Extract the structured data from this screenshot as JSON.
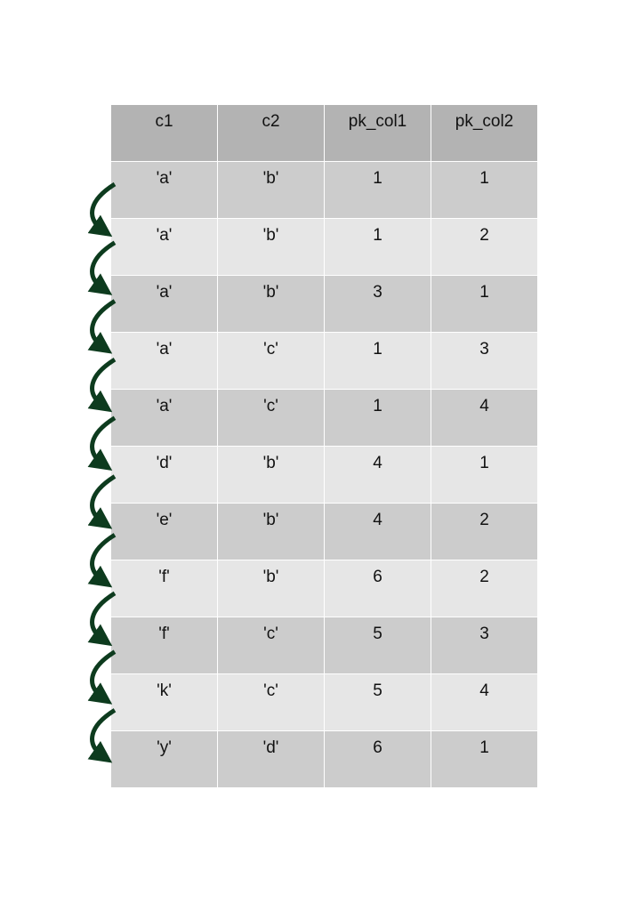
{
  "columns": [
    "c1",
    "c2",
    "pk_col1",
    "pk_col2"
  ],
  "rows": [
    [
      "'a'",
      "'b'",
      "1",
      "1"
    ],
    [
      "'a'",
      "'b'",
      "1",
      "2"
    ],
    [
      "'a'",
      "'b'",
      "3",
      "1"
    ],
    [
      "'a'",
      "'c'",
      "1",
      "3"
    ],
    [
      "'a'",
      "'c'",
      "1",
      "4"
    ],
    [
      "'d'",
      "'b'",
      "4",
      "1"
    ],
    [
      "'e'",
      "'b'",
      "4",
      "2"
    ],
    [
      "'f'",
      "'b'",
      "6",
      "2"
    ],
    [
      "'f'",
      "'c'",
      "5",
      "3"
    ],
    [
      "'k'",
      "'c'",
      "5",
      "4"
    ],
    [
      "'y'",
      "'d'",
      "6",
      "1"
    ]
  ],
  "colors": {
    "header": "#b3b3b3",
    "row_odd": "#cccccc",
    "row_even": "#e6e6e6",
    "arrow": "#0d3b1e"
  },
  "arrow_icon": "curved-down-arrow"
}
